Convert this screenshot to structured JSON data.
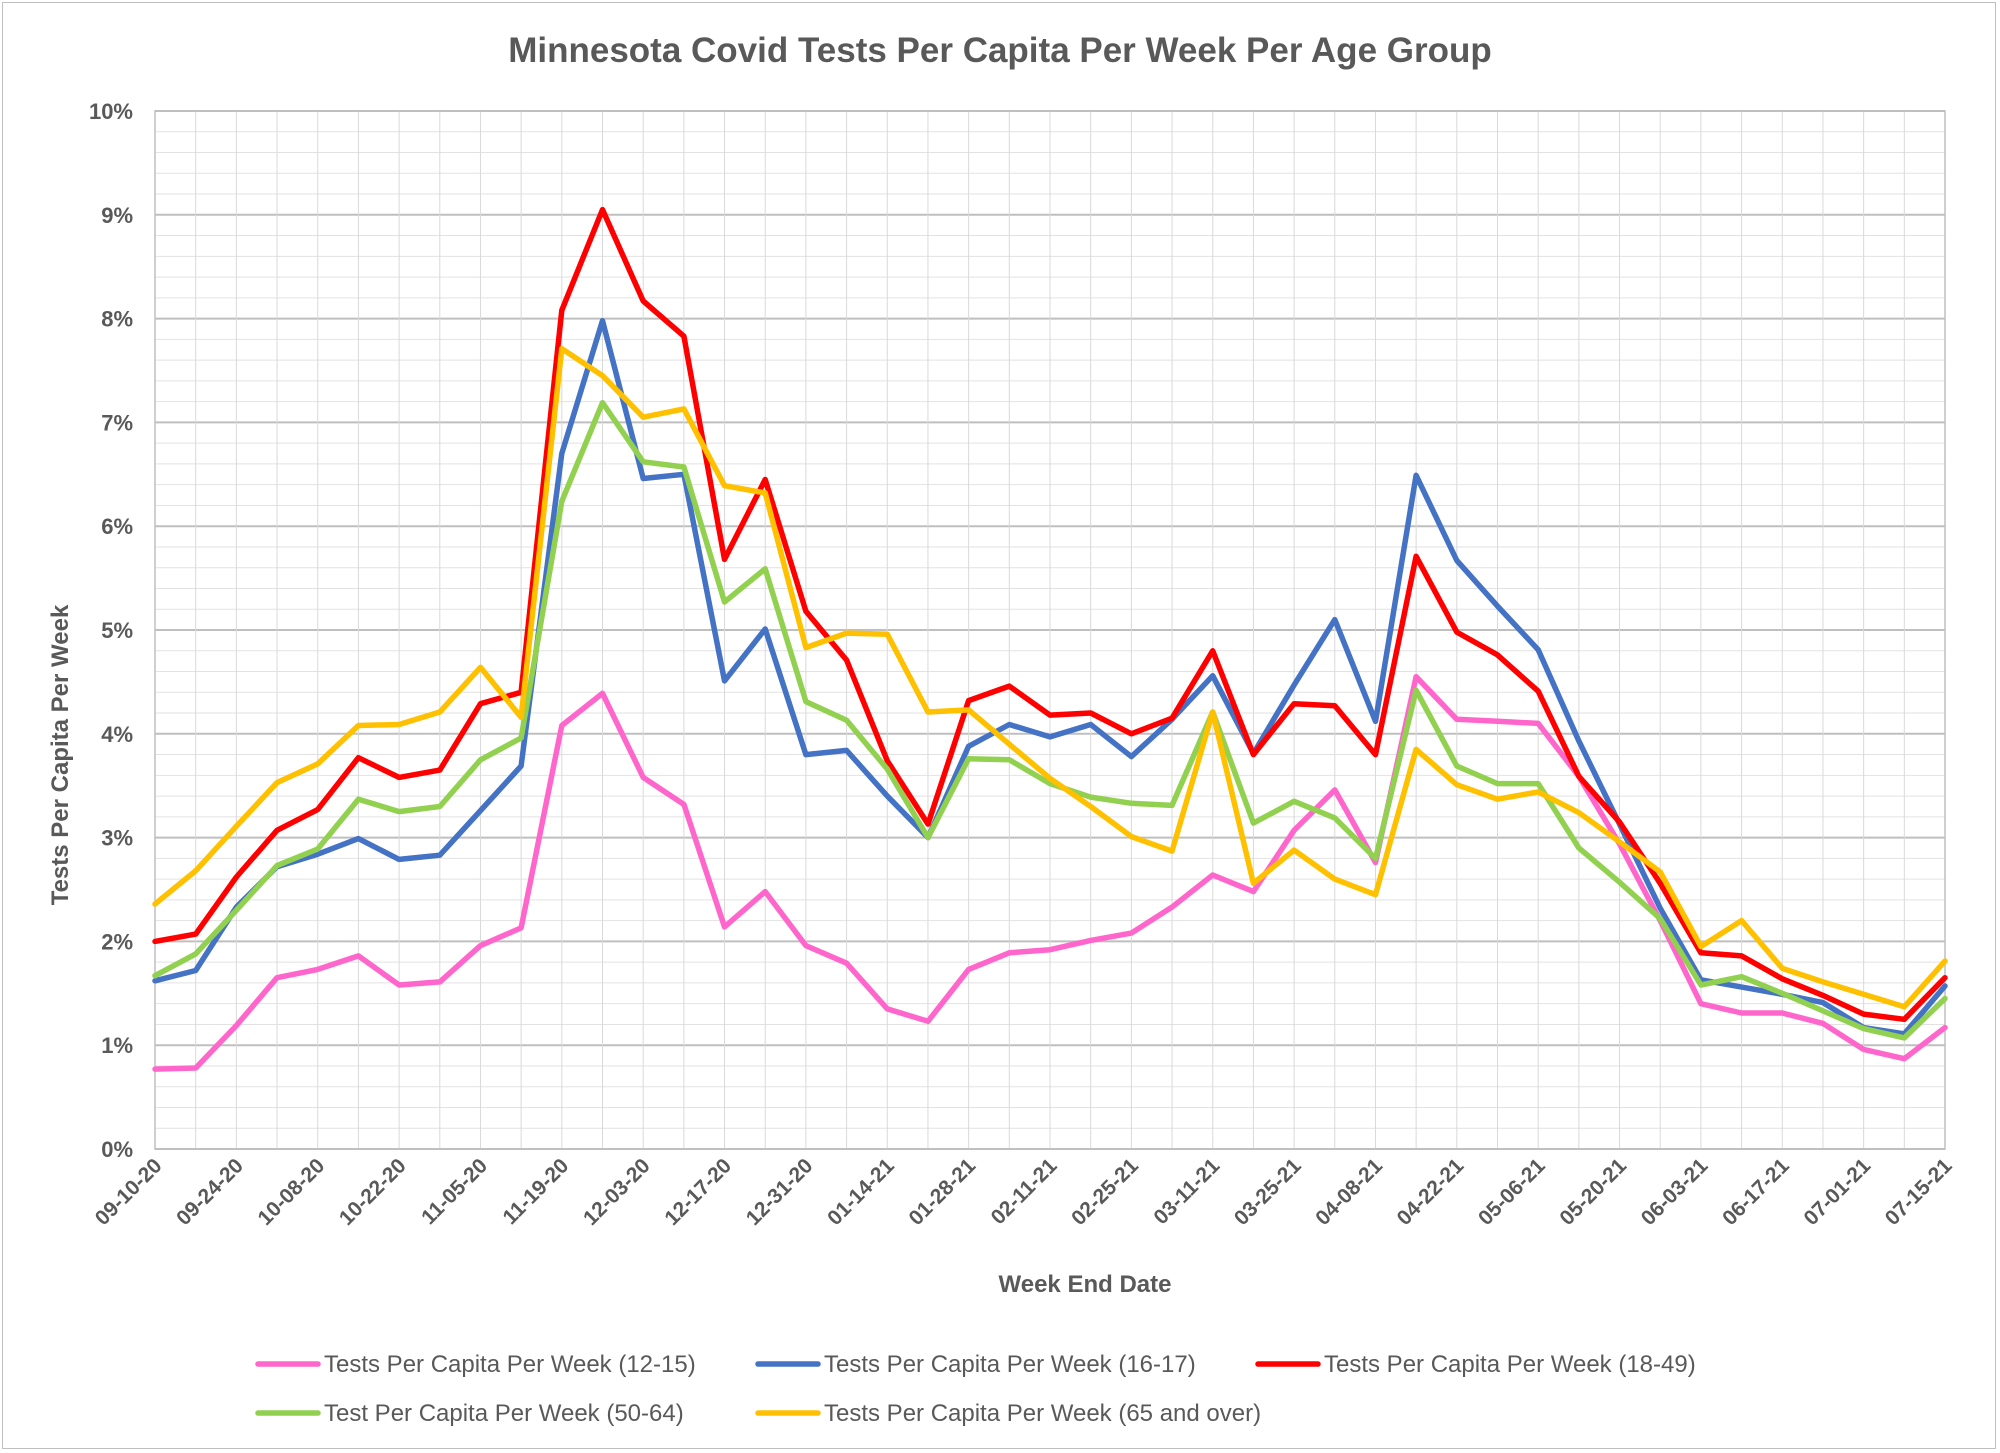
{
  "chart_data": {
    "type": "line",
    "title": "Minnesota Covid Tests Per Capita Per Week Per Age Group",
    "xlabel": "Week End Date",
    "ylabel": "Tests Per Capita Per Week",
    "ylim": [
      0,
      10
    ],
    "y_unit_suffix": "%",
    "y_ticks": [
      0,
      1,
      2,
      3,
      4,
      5,
      6,
      7,
      8,
      9,
      10
    ],
    "grid": true,
    "legend_position": "bottom",
    "x": [
      "09-10-20",
      "09-17-20",
      "09-24-20",
      "10-01-20",
      "10-08-20",
      "10-15-20",
      "10-22-20",
      "10-29-20",
      "11-05-20",
      "11-12-20",
      "11-19-20",
      "11-26-20",
      "12-03-20",
      "12-10-20",
      "12-17-20",
      "12-24-20",
      "12-31-20",
      "01-07-21",
      "01-14-21",
      "01-21-21",
      "01-28-21",
      "02-04-21",
      "02-11-21",
      "02-18-21",
      "02-25-21",
      "03-04-21",
      "03-11-21",
      "03-18-21",
      "03-25-21",
      "04-01-21",
      "04-08-21",
      "04-15-21",
      "04-22-21",
      "04-29-21",
      "05-06-21",
      "05-13-21",
      "05-20-21",
      "05-27-21",
      "06-03-21",
      "06-10-21",
      "06-17-21",
      "06-24-21",
      "07-01-21",
      "07-08-21",
      "07-15-21"
    ],
    "x_tick_labels": [
      "09-10-20",
      "09-24-20",
      "10-08-20",
      "10-22-20",
      "11-05-20",
      "11-19-20",
      "12-03-20",
      "12-17-20",
      "12-31-20",
      "01-14-21",
      "01-28-21",
      "02-11-21",
      "02-25-21",
      "03-11-21",
      "03-25-21",
      "04-08-21",
      "04-22-21",
      "05-06-21",
      "05-20-21",
      "06-03-21",
      "06-17-21",
      "07-01-21",
      "07-15-21"
    ],
    "series": [
      {
        "name": "Tests Per Capita Per Week (12-15)",
        "color": "#ff66cc",
        "values": [
          0.77,
          0.78,
          1.19,
          1.65,
          1.73,
          1.86,
          1.58,
          1.61,
          1.96,
          2.13,
          4.08,
          4.39,
          3.58,
          3.32,
          2.14,
          2.48,
          1.96,
          1.79,
          1.35,
          1.23,
          1.73,
          1.89,
          1.92,
          2.01,
          2.08,
          2.33,
          2.64,
          2.48,
          3.07,
          3.46,
          2.76,
          4.55,
          4.14,
          4.12,
          4.1,
          3.59,
          2.94,
          2.2,
          1.4,
          1.31,
          1.31,
          1.21,
          0.96,
          0.87,
          1.17
        ]
      },
      {
        "name": "Tests Per Capita Per Week (16-17)",
        "color": "#4472c4",
        "values": [
          1.62,
          1.72,
          2.33,
          2.72,
          2.84,
          2.99,
          2.79,
          2.83,
          3.26,
          3.69,
          6.7,
          7.98,
          6.46,
          6.5,
          4.51,
          5.01,
          3.8,
          3.84,
          3.4,
          3.0,
          3.88,
          4.09,
          3.97,
          4.09,
          3.78,
          4.14,
          4.56,
          3.81,
          4.47,
          5.1,
          4.12,
          6.49,
          5.67,
          5.23,
          4.81,
          3.93,
          3.13,
          2.32,
          1.63,
          1.56,
          1.49,
          1.41,
          1.17,
          1.11,
          1.57
        ]
      },
      {
        "name": "Tests Per Capita Per Week (18-49)",
        "color": "#ff0000",
        "values": [
          2.0,
          2.07,
          2.62,
          3.07,
          3.27,
          3.77,
          3.58,
          3.65,
          4.29,
          4.4,
          8.08,
          9.05,
          8.17,
          7.83,
          5.68,
          6.45,
          5.18,
          4.71,
          3.74,
          3.13,
          4.32,
          4.46,
          4.18,
          4.2,
          4.0,
          4.15,
          4.8,
          3.8,
          4.29,
          4.27,
          3.8,
          5.71,
          4.98,
          4.76,
          4.41,
          3.59,
          3.15,
          2.56,
          1.89,
          1.86,
          1.64,
          1.48,
          1.3,
          1.25,
          1.65
        ]
      },
      {
        "name": "Test Per Capita Per Week (50-64)",
        "color": "#92d050",
        "values": [
          1.67,
          1.88,
          2.3,
          2.73,
          2.89,
          3.37,
          3.25,
          3.3,
          3.75,
          3.96,
          6.24,
          7.19,
          6.62,
          6.57,
          5.27,
          5.59,
          4.31,
          4.13,
          3.66,
          3.0,
          3.76,
          3.75,
          3.52,
          3.39,
          3.33,
          3.31,
          4.21,
          3.14,
          3.35,
          3.19,
          2.8,
          4.42,
          3.69,
          3.52,
          3.52,
          2.9,
          2.57,
          2.22,
          1.58,
          1.66,
          1.5,
          1.33,
          1.16,
          1.07,
          1.45
        ]
      },
      {
        "name": "Tests Per Capita Per Week (65 and over)",
        "color": "#ffc000",
        "values": [
          2.36,
          2.68,
          3.11,
          3.53,
          3.71,
          4.08,
          4.09,
          4.21,
          4.64,
          4.16,
          7.71,
          7.45,
          7.05,
          7.13,
          6.39,
          6.32,
          4.83,
          4.97,
          4.96,
          4.21,
          4.23,
          3.9,
          3.57,
          3.3,
          3.01,
          2.87,
          4.21,
          2.56,
          2.88,
          2.6,
          2.45,
          3.85,
          3.51,
          3.37,
          3.44,
          3.24,
          2.96,
          2.67,
          1.95,
          2.2,
          1.74,
          1.61,
          1.49,
          1.37,
          1.81
        ]
      }
    ]
  }
}
